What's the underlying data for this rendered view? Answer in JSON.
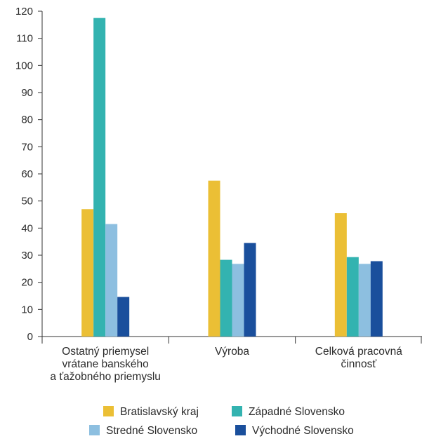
{
  "chart_data": {
    "type": "bar",
    "title": "",
    "xlabel": "",
    "ylabel": "",
    "ylim": [
      0,
      120
    ],
    "yticks": [
      0,
      10,
      20,
      30,
      40,
      50,
      60,
      70,
      80,
      90,
      100,
      110,
      120
    ],
    "grid": false,
    "legend_position": "bottom",
    "categories": [
      [
        "Ostatný priemysel",
        "vrátane banského",
        "a ťažobného priemyslu"
      ],
      [
        "Výroba"
      ],
      [
        "Celková pracovná",
        "činnosť"
      ]
    ],
    "series": [
      {
        "name": "Bratislavský kraj",
        "color": "#ebbf35",
        "values": [
          47,
          57.5,
          45.5
        ]
      },
      {
        "name": "Západné Slovensko",
        "color": "#33b3b0",
        "values": [
          117.5,
          28.3,
          29.3
        ]
      },
      {
        "name": "Stredné Slovensko",
        "color": "#8dbfe0",
        "values": [
          41.5,
          26.8,
          26.8
        ]
      },
      {
        "name": "Východné Slovensko",
        "color": "#1a4f9c",
        "values": [
          14.6,
          34.5,
          27.8
        ]
      }
    ]
  }
}
